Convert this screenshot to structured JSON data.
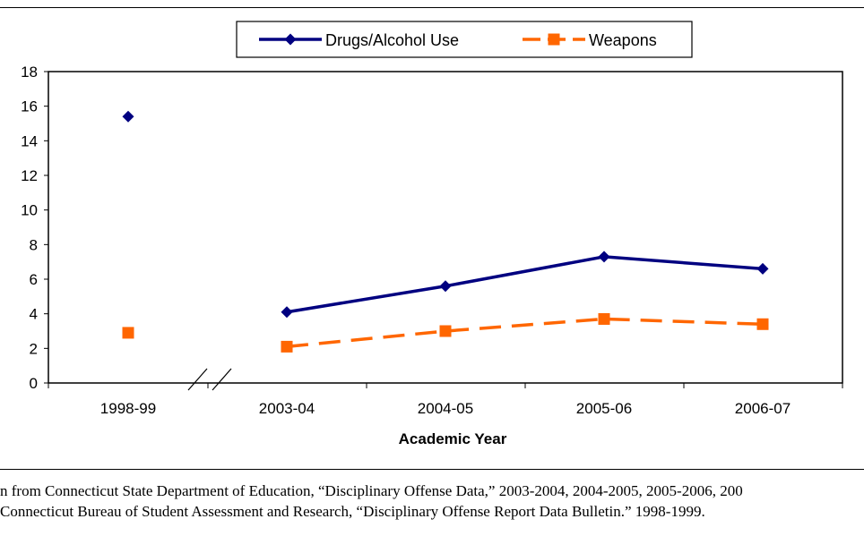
{
  "chart_data": {
    "type": "line",
    "categories": [
      "1998-99",
      "2003-04",
      "2004-05",
      "2005-06",
      "2006-07"
    ],
    "series": [
      {
        "name": "Drugs/Alcohol Use",
        "values": [
          15.4,
          4.1,
          5.6,
          7.3,
          6.6
        ],
        "color": "#000080",
        "marker": "diamond",
        "dash": "solid"
      },
      {
        "name": "Weapons",
        "values": [
          2.9,
          2.1,
          3.0,
          3.7,
          3.4
        ],
        "color": "#ff6600",
        "marker": "square",
        "dash": "dashed"
      }
    ],
    "xlabel": "Academic Year",
    "ylabel": "",
    "ylim": [
      0,
      18
    ],
    "yticks": [
      0,
      2,
      4,
      6,
      8,
      10,
      12,
      14,
      16,
      18
    ],
    "axis_break": "between 1998-99 and 2003-04",
    "legend_position": "top",
    "grid": false
  },
  "source": {
    "line1": "n from Connecticut State Department of Education, “Disciplinary Offense Data,” 2003-2004, 2004-2005, 2005-2006, 200",
    "line2": "Connecticut Bureau of Student Assessment and Research, “Disciplinary Offense Report Data Bulletin.” 1998-1999."
  }
}
